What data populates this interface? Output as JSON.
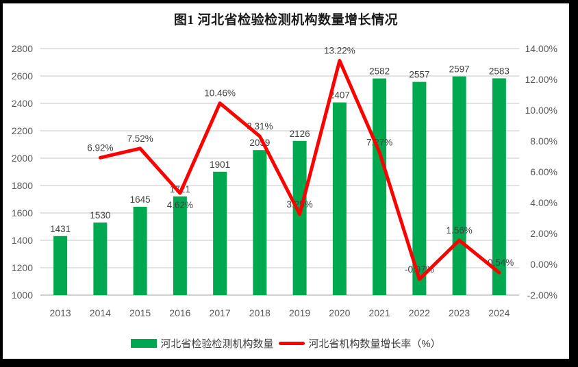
{
  "title": "图1 河北省检验检测机构数量增长情况",
  "legend": {
    "items": [
      {
        "label": "河北省检验检测机构数量",
        "swatch": "bar",
        "color": "#00A950"
      },
      {
        "label": "河北省机构数量增长率（%）",
        "swatch": "line",
        "color": "#FF0000"
      }
    ]
  },
  "colors": {
    "bar": "#00A950",
    "line": "#FF0000",
    "gridline": "#D9D9D9",
    "axis_line": "#BFBFBF",
    "tick_text": "#595959",
    "label_text": "#3f3f3f"
  },
  "chart_data": {
    "type": "bar+line combo",
    "categories": [
      "2013",
      "2014",
      "2015",
      "2016",
      "2017",
      "2018",
      "2019",
      "2020",
      "2021",
      "2022",
      "2023",
      "2024"
    ],
    "series": [
      {
        "name": "河北省检验检测机构数量",
        "type": "bar",
        "axis": "left",
        "color": "#00A950",
        "values": [
          1431,
          1530,
          1645,
          1721,
          1901,
          2059,
          2126,
          2407,
          2582,
          2557,
          2597,
          2583
        ],
        "labels": [
          "1431",
          "1530",
          "1645",
          "1721",
          "1901",
          "2059",
          "2126",
          "2407",
          "2582",
          "2557",
          "2597",
          "2583"
        ]
      },
      {
        "name": "河北省机构数量增长率（%）",
        "type": "line",
        "axis": "right",
        "color": "#FF0000",
        "values": [
          null,
          6.92,
          7.52,
          4.62,
          10.46,
          8.31,
          3.25,
          13.22,
          7.27,
          -0.97,
          1.56,
          -0.54
        ],
        "labels": [
          null,
          "6.92%",
          "7.52%",
          "4.62%",
          "10.46%",
          "8.31%",
          "3.25%",
          "13.22%",
          "7.27%",
          "-0.97%",
          "1.56%",
          "-0.54%"
        ],
        "labels_below": [
          "4.62%"
        ]
      }
    ],
    "left_axis": {
      "min": 1000,
      "max": 2800,
      "step": 200,
      "ticks": [
        "1000",
        "1200",
        "1400",
        "1600",
        "1800",
        "2000",
        "2200",
        "2400",
        "2600",
        "2800"
      ]
    },
    "right_axis": {
      "min": -2,
      "max": 14,
      "step": 2,
      "ticks": [
        "-2.00%",
        "0.00%",
        "2.00%",
        "4.00%",
        "6.00%",
        "8.00%",
        "10.00%",
        "12.00%",
        "14.00%"
      ]
    },
    "grid": true,
    "legend_position": "bottom",
    "title": "图1 河北省检验检测机构数量增长情况"
  }
}
